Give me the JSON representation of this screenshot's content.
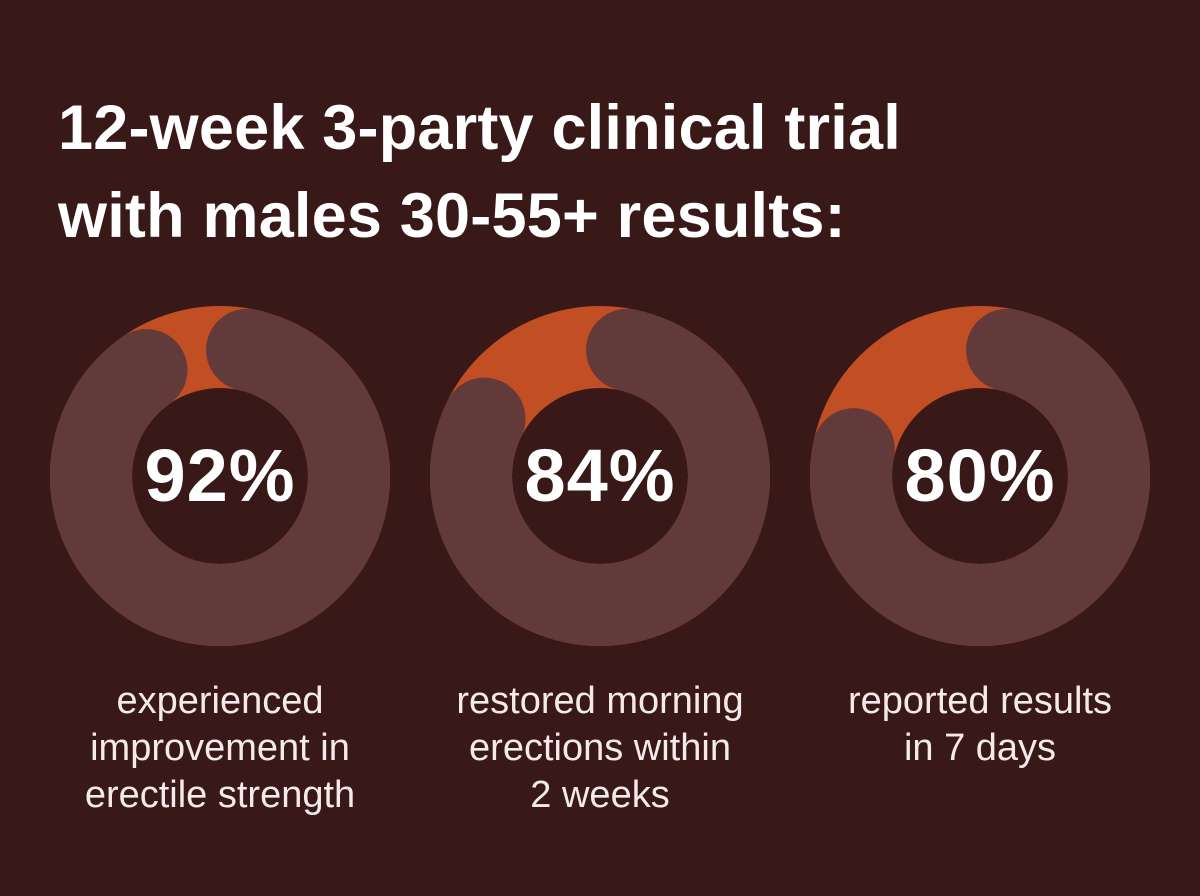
{
  "headline": {
    "line1": "12-week 3-party clinical trial",
    "line2": "with males 30-55+ results:"
  },
  "colors": {
    "background": "#391818",
    "ring_track": "#623a3a",
    "ring_accent": "#c24e24",
    "text": "#ffffff"
  },
  "chart_data": {
    "type": "pie",
    "style": "donut",
    "unit": "%",
    "items": [
      {
        "value": 92,
        "label": "92%",
        "caption": [
          "experienced",
          "improvement in",
          "erectile strength"
        ]
      },
      {
        "value": 84,
        "label": "84%",
        "caption": [
          "restored morning",
          "erections within",
          "2 weeks"
        ]
      },
      {
        "value": 80,
        "label": "80%",
        "caption": [
          "reported results",
          "in 7 days"
        ]
      }
    ]
  }
}
